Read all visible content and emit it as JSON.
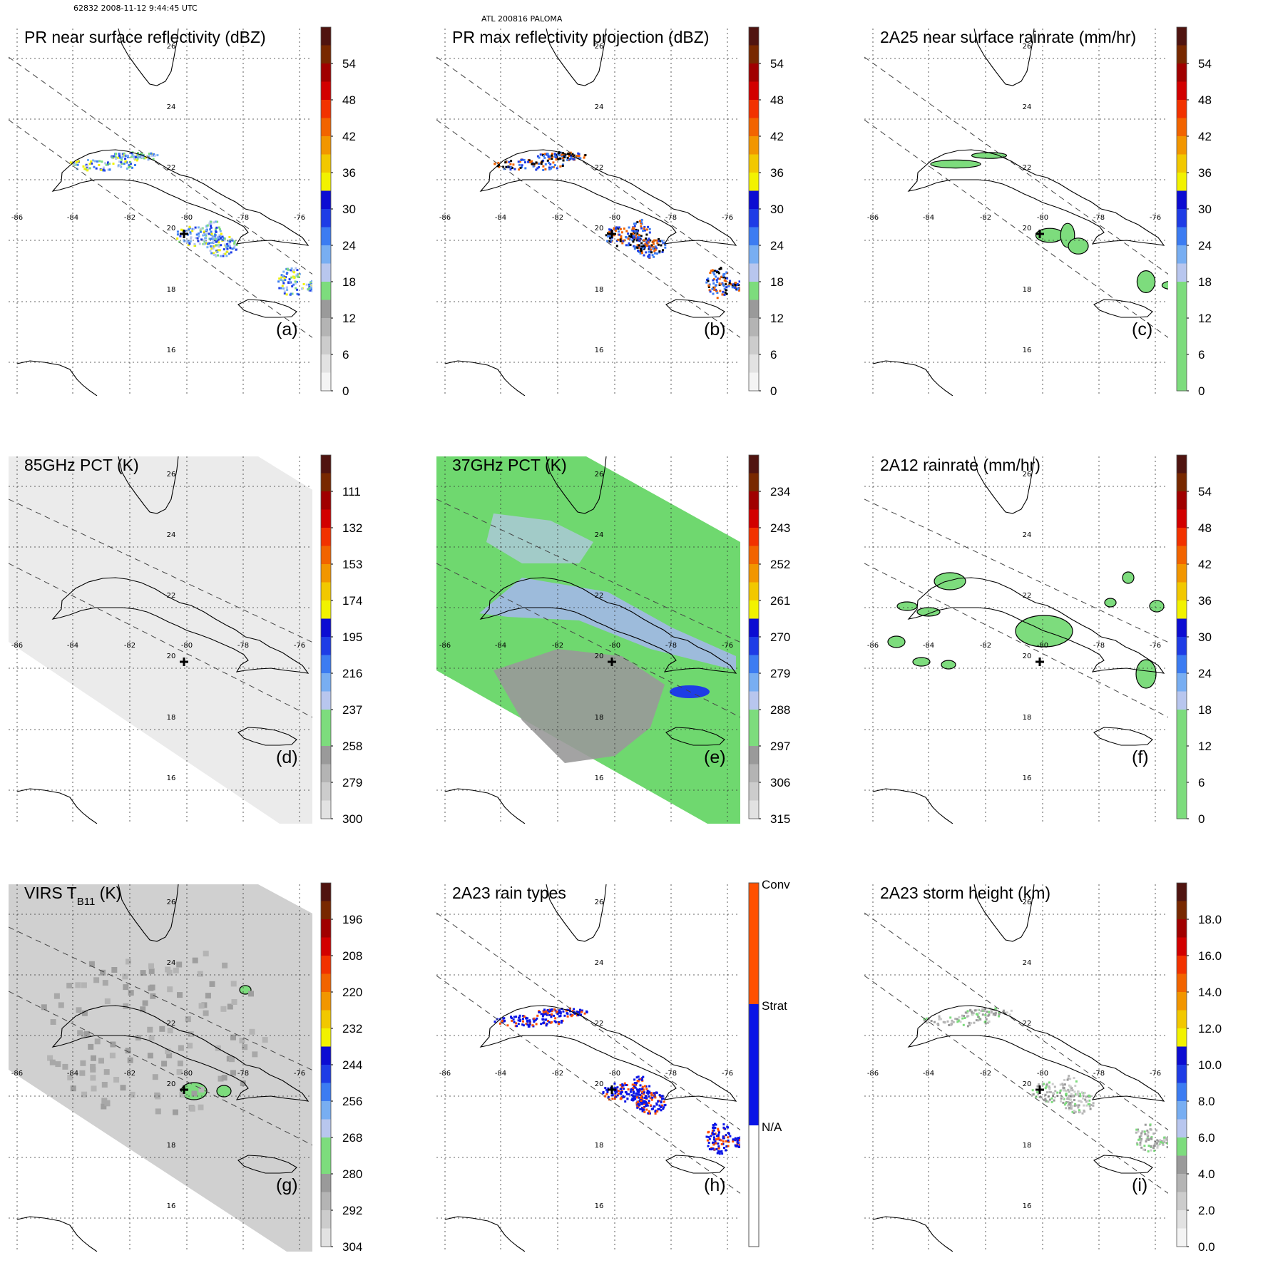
{
  "header": {
    "orbit_time": "62832 2008-11-12 9:44:45 UTC",
    "storm": "ATL 200816 PALOMA"
  },
  "lon_labels": [
    "-86",
    "-84",
    "-82",
    "-80",
    "-78",
    "-76"
  ],
  "lat_labels": [
    "26",
    "24",
    "22",
    "20",
    "18",
    "16"
  ],
  "panels": [
    {
      "id": "a",
      "title": "PR near surface reflectivity (dBZ)",
      "letter": "(a)",
      "bg": "none",
      "swath": "pr",
      "marks": "pr_ref",
      "colorbar": {
        "type": "dbz",
        "labels": [
          "54",
          "48",
          "42",
          "36",
          "30",
          "24",
          "18",
          "12",
          "6",
          "0"
        ]
      }
    },
    {
      "id": "b",
      "title": "PR max reflectivity projection (dBZ)",
      "letter": "(b)",
      "bg": "none",
      "swath": "pr",
      "marks": "pr_max",
      "colorbar": {
        "type": "dbz",
        "labels": [
          "54",
          "48",
          "42",
          "36",
          "30",
          "24",
          "18",
          "12",
          "6",
          "0"
        ]
      }
    },
    {
      "id": "c",
      "title": "2A25 near surface rainrate (mm/hr)",
      "letter": "(c)",
      "bg": "none",
      "swath": "pr",
      "marks": "rain_pr",
      "colorbar": {
        "type": "rain",
        "labels": [
          "54",
          "48",
          "42",
          "36",
          "30",
          "24",
          "18",
          "12",
          "6",
          "0"
        ]
      }
    },
    {
      "id": "d",
      "title": "85GHz PCT (K)",
      "letter": "(d)",
      "bg": "pct85",
      "swath": "tmi",
      "marks": "none",
      "colorbar": {
        "type": "temp",
        "labels": [
          "111",
          "132",
          "153",
          "174",
          "195",
          "216",
          "237",
          "258",
          "279",
          "300"
        ]
      }
    },
    {
      "id": "e",
      "title": "37GHz PCT (K)",
      "letter": "(e)",
      "bg": "pct37",
      "swath": "tmi",
      "marks": "pct37",
      "colorbar": {
        "type": "temp",
        "labels": [
          "234",
          "243",
          "252",
          "261",
          "270",
          "279",
          "288",
          "297",
          "306",
          "315"
        ]
      }
    },
    {
      "id": "f",
      "title": "2A12 rainrate (mm/hr)",
      "letter": "(f)",
      "bg": "none",
      "swath": "tmi",
      "marks": "rain_tmi",
      "colorbar": {
        "type": "rain",
        "labels": [
          "54",
          "48",
          "42",
          "36",
          "30",
          "24",
          "18",
          "12",
          "6",
          "0"
        ]
      }
    },
    {
      "id": "g",
      "title": "VIRS T",
      "title_sub": "B11",
      "title_suffix": " (K)",
      "letter": "(g)",
      "bg": "virs",
      "swath": "tmi",
      "marks": "virs",
      "colorbar": {
        "type": "temp",
        "labels": [
          "196",
          "208",
          "220",
          "232",
          "244",
          "256",
          "268",
          "280",
          "292",
          "304"
        ]
      }
    },
    {
      "id": "h",
      "title": "2A23 rain types",
      "letter": "(h)",
      "bg": "none",
      "swath": "pr",
      "marks": "raintype",
      "colorbar": {
        "type": "raintype",
        "labels": [
          "Conv",
          "Strat",
          "N/A"
        ]
      }
    },
    {
      "id": "i",
      "title": "2A23 storm height (km)",
      "letter": "(i)",
      "bg": "none",
      "swath": "pr",
      "marks": "height",
      "colorbar": {
        "type": "height",
        "labels": [
          "18.0",
          "16.0",
          "14.0",
          "12.0",
          "10.0",
          "8.0",
          "6.0",
          "4.0",
          "2.0",
          "0.0"
        ]
      }
    }
  ],
  "colors": {
    "dbz_scale": [
      "#f4f4f4",
      "#e2e2e2",
      "#cccccc",
      "#b4b4b4",
      "#9a9a9a",
      "#7ddc7d",
      "#b8c6ee",
      "#78aef2",
      "#3c7cf2",
      "#1e3ce6",
      "#0c0cd2",
      "#f2f200",
      "#f2c800",
      "#f29600",
      "#f26400",
      "#f23200",
      "#d20000",
      "#a00000",
      "#782800",
      "#501410"
    ],
    "temp_scale": [
      "#501410",
      "#782800",
      "#a00000",
      "#d20000",
      "#f23200",
      "#f26400",
      "#f29600",
      "#f2c800",
      "#f2f200",
      "#0c0cd2",
      "#1e3ce6",
      "#3c7cf2",
      "#78aef2",
      "#b8c6ee",
      "#7ddc7d",
      "#7ddc7d",
      "#9a9a9a",
      "#b4b4b4",
      "#cccccc",
      "#e2e2e2"
    ],
    "raintype": [
      "#ff5000",
      "#0a14e6",
      "#ffffff"
    ],
    "pct37_land": "#6fd86f",
    "pct37_gray": "#999999",
    "pct85_bg": "#ebebeb",
    "virs_bg": "#d0d0d0"
  }
}
